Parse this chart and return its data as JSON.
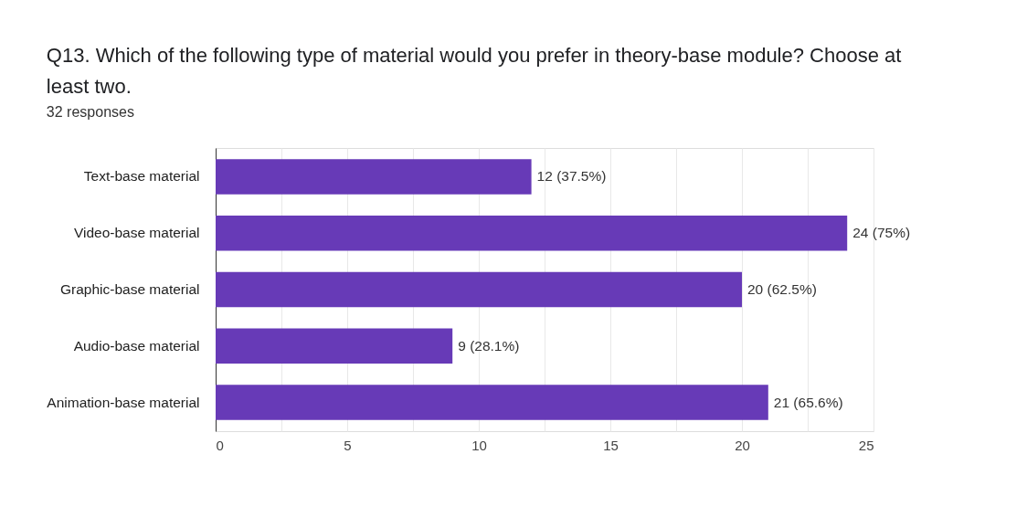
{
  "chart_data": {
    "type": "bar",
    "orientation": "horizontal",
    "title": "Q13.   Which of the following type of material would you prefer in theory-base module? Choose at least two.",
    "subtitle": "32 responses",
    "categories": [
      "Text-base material",
      "Video-base material",
      "Graphic-base material",
      "Audio-base material",
      "Animation-base material"
    ],
    "values": [
      12,
      24,
      20,
      9,
      21
    ],
    "value_labels": [
      "12 (37.5%)",
      "24 (75%)",
      "20 (62.5%)",
      "9 (28.1%)",
      "21 (65.6%)"
    ],
    "color": "#673ab7",
    "xlim": [
      0,
      25
    ],
    "xticks": [
      0,
      {
        "value": 2.5,
        "label": null
      },
      5,
      {
        "value": 7.5,
        "label": null
      },
      10,
      {
        "value": 12.5,
        "label": null
      },
      15,
      {
        "value": 17.5,
        "label": null
      },
      20,
      {
        "value": 22.5,
        "label": null
      },
      25
    ],
    "grid": "x"
  }
}
